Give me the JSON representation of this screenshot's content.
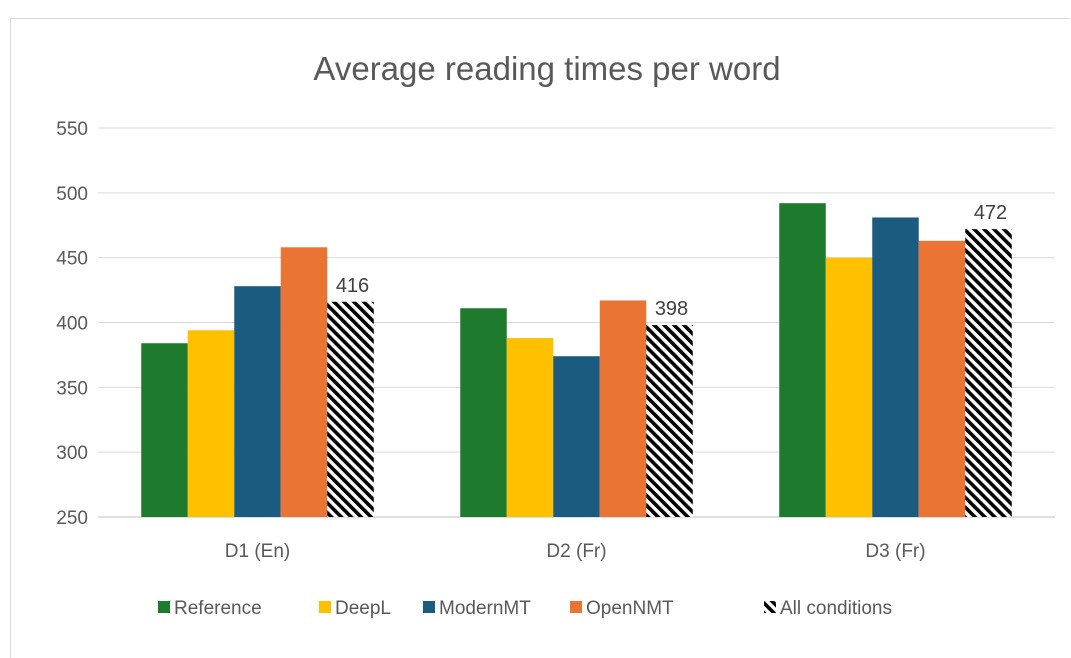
{
  "chart_data": {
    "type": "bar",
    "title": "Average reading times per word",
    "xlabel": "",
    "ylabel": "",
    "ylim": [
      250,
      550
    ],
    "yticks": [
      250,
      300,
      350,
      400,
      450,
      500,
      550
    ],
    "grid": true,
    "legend_position": "bottom",
    "categories": [
      "D1 (En)",
      "D2 (Fr)",
      "D3 (Fr)"
    ],
    "series": [
      {
        "name": "Reference",
        "color": "#1e7b2e",
        "values": [
          384,
          411,
          492
        ]
      },
      {
        "name": "DeepL",
        "color": "#ffc000",
        "values": [
          394,
          388,
          450
        ]
      },
      {
        "name": "ModernMT",
        "color": "#1b5b80",
        "values": [
          428,
          374,
          481
        ]
      },
      {
        "name": "OpenNMT",
        "color": "#e97434",
        "values": [
          458,
          417,
          463
        ]
      },
      {
        "name": "All conditions",
        "pattern": "hatched",
        "color": "#000000",
        "values": [
          416,
          398,
          472
        ],
        "show_labels": true
      }
    ]
  }
}
